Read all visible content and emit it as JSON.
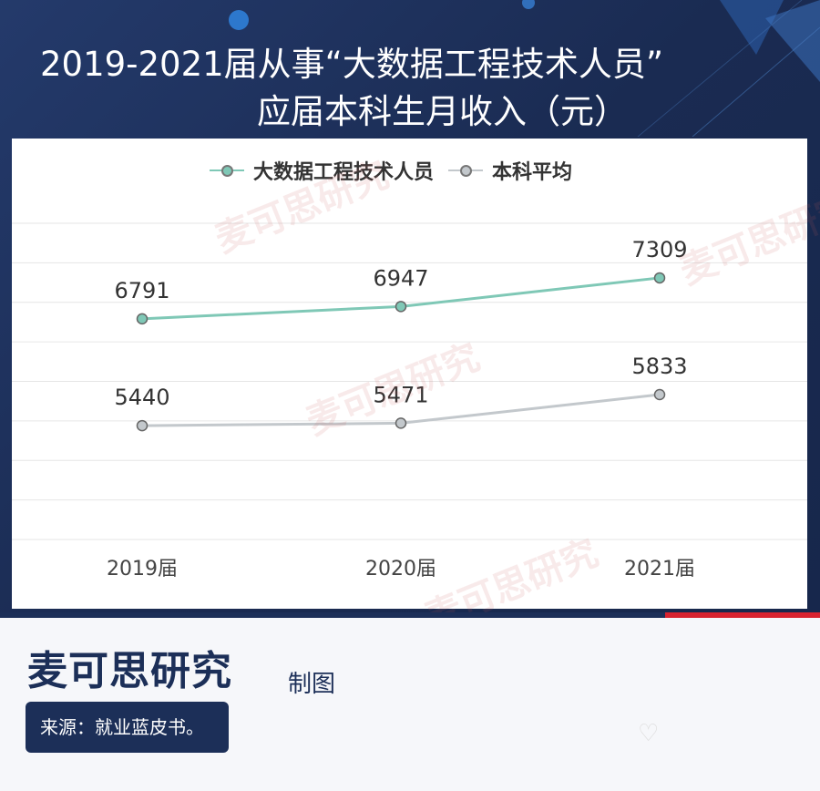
{
  "title": {
    "line1": "2019-2021届从事“大数据工程技术人员”",
    "line2": "应届本科生月收入（元）"
  },
  "watermark_text": "麦可思研究",
  "colors": {
    "series1": "#7fc8b6",
    "series2": "#c3c8cc",
    "navy": "#1c2f58",
    "accent_red": "#d8222f"
  },
  "chart_data": {
    "type": "line",
    "categories": [
      "2019届",
      "2020届",
      "2021届"
    ],
    "series": [
      {
        "name": "大数据工程技术人员",
        "values": [
          6791,
          6947,
          7309
        ]
      },
      {
        "name": "本科平均",
        "values": [
          5440,
          5471,
          5833
        ]
      }
    ],
    "legend": "top-center",
    "grid": true
  },
  "footer": {
    "brand": "麦可思研究",
    "brand_suffix": "制图",
    "source": "来源：就业蓝皮书。"
  }
}
